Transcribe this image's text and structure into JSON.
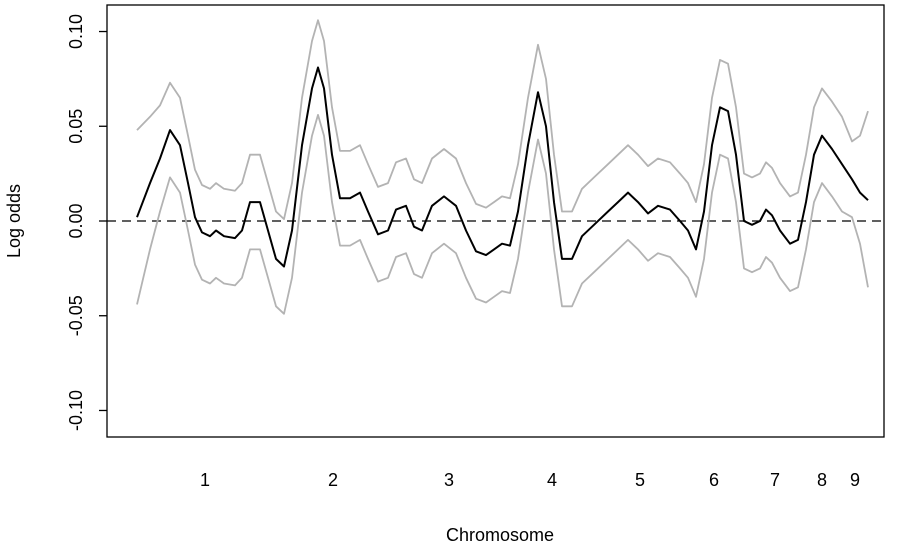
{
  "chart_data": {
    "type": "line",
    "xlabel": "Chromosome",
    "ylabel": "Log odds",
    "xlim": [
      0,
      777
    ],
    "ylim": [
      -0.114,
      0.114
    ],
    "xticks": [
      {
        "value": 98,
        "label": "1"
      },
      {
        "value": 226,
        "label": "2"
      },
      {
        "value": 342,
        "label": "3"
      },
      {
        "value": 445,
        "label": "4"
      },
      {
        "value": 533,
        "label": "5"
      },
      {
        "value": 607,
        "label": "6"
      },
      {
        "value": 668,
        "label": "7"
      },
      {
        "value": 715,
        "label": "8"
      },
      {
        "value": 748,
        "label": "9"
      }
    ],
    "yticks": [
      {
        "value": -0.1,
        "label": "-0.10"
      },
      {
        "value": -0.05,
        "label": "-0.05"
      },
      {
        "value": 0,
        "label": "0.00"
      },
      {
        "value": 0.05,
        "label": "0.05"
      },
      {
        "value": 0.1,
        "label": "0.10"
      }
    ],
    "reference_line": 0,
    "x": [
      30,
      43,
      53,
      63,
      73,
      81,
      88,
      95,
      103,
      109,
      117,
      128,
      135,
      143,
      153,
      161,
      169,
      177,
      185,
      195,
      205,
      211,
      217,
      225,
      233,
      243,
      253,
      261,
      271,
      281,
      289,
      299,
      307,
      315,
      325,
      337,
      349,
      359,
      369,
      379,
      387,
      395,
      403,
      411,
      421,
      431,
      439,
      447,
      455,
      465,
      475,
      487,
      501,
      511,
      521,
      531,
      541,
      551,
      563,
      573,
      581,
      589,
      597,
      605,
      613,
      621,
      629,
      637,
      645,
      653,
      659,
      665,
      673,
      683,
      691,
      699,
      707,
      715,
      725,
      735,
      745,
      753,
      761
    ],
    "series": [
      {
        "color": "#b3b3b3",
        "values": [
          0.048,
          0.055,
          0.061,
          0.073,
          0.065,
          0.045,
          0.027,
          0.019,
          0.017,
          0.02,
          0.017,
          0.016,
          0.02,
          0.035,
          0.035,
          0.02,
          0.005,
          0.001,
          0.02,
          0.065,
          0.095,
          0.106,
          0.095,
          0.06,
          0.037,
          0.037,
          0.04,
          0.03,
          0.018,
          0.02,
          0.031,
          0.033,
          0.022,
          0.02,
          0.033,
          0.038,
          0.033,
          0.02,
          0.009,
          0.007,
          0.01,
          0.013,
          0.012,
          0.03,
          0.065,
          0.093,
          0.075,
          0.035,
          0.005,
          0.005,
          0.017,
          0.023,
          0.03,
          0.035,
          0.04,
          0.035,
          0.029,
          0.033,
          0.031,
          0.025,
          0.02,
          0.01,
          0.03,
          0.065,
          0.085,
          0.083,
          0.06,
          0.025,
          0.023,
          0.025,
          0.031,
          0.028,
          0.02,
          0.013,
          0.015,
          0.035,
          0.06,
          0.07,
          0.063,
          0.055,
          0.042,
          0.045,
          0.058
        ]
      },
      {
        "color": "#b3b3b3",
        "values": [
          -0.044,
          -0.015,
          0.005,
          0.023,
          0.015,
          -0.005,
          -0.023,
          -0.031,
          -0.033,
          -0.03,
          -0.033,
          -0.034,
          -0.03,
          -0.015,
          -0.015,
          -0.03,
          -0.045,
          -0.049,
          -0.03,
          0.015,
          0.045,
          0.056,
          0.045,
          0.01,
          -0.013,
          -0.013,
          -0.01,
          -0.02,
          -0.032,
          -0.03,
          -0.019,
          -0.017,
          -0.028,
          -0.03,
          -0.017,
          -0.012,
          -0.017,
          -0.03,
          -0.041,
          -0.043,
          -0.04,
          -0.037,
          -0.038,
          -0.02,
          0.015,
          0.043,
          0.025,
          -0.015,
          -0.045,
          -0.045,
          -0.033,
          -0.027,
          -0.02,
          -0.015,
          -0.01,
          -0.015,
          -0.021,
          -0.017,
          -0.019,
          -0.025,
          -0.03,
          -0.04,
          -0.02,
          0.015,
          0.035,
          0.033,
          0.01,
          -0.025,
          -0.027,
          -0.025,
          -0.019,
          -0.022,
          -0.03,
          -0.037,
          -0.035,
          -0.015,
          0.01,
          0.02,
          0.013,
          0.005,
          0.002,
          -0.012,
          -0.035
        ]
      },
      {
        "color": "#000000",
        "values": [
          0.002,
          0.02,
          0.033,
          0.048,
          0.04,
          0.02,
          0.002,
          -0.006,
          -0.008,
          -0.005,
          -0.008,
          -0.009,
          -0.005,
          0.01,
          0.01,
          -0.005,
          -0.02,
          -0.024,
          -0.005,
          0.04,
          0.07,
          0.081,
          0.07,
          0.035,
          0.012,
          0.012,
          0.015,
          0.005,
          -0.007,
          -0.005,
          0.006,
          0.008,
          -0.003,
          -0.005,
          0.008,
          0.013,
          0.008,
          -0.005,
          -0.016,
          -0.018,
          -0.015,
          -0.012,
          -0.013,
          0.005,
          0.04,
          0.068,
          0.05,
          0.01,
          -0.02,
          -0.02,
          -0.008,
          -0.002,
          0.005,
          0.01,
          0.015,
          0.01,
          0.004,
          0.008,
          0.006,
          0.0,
          -0.005,
          -0.015,
          0.005,
          0.04,
          0.06,
          0.058,
          0.035,
          0.0,
          -0.002,
          0.0,
          0.006,
          0.003,
          -0.005,
          -0.012,
          -0.01,
          0.01,
          0.035,
          0.045,
          0.038,
          0.03,
          0.022,
          0.015,
          0.011
        ]
      }
    ]
  }
}
